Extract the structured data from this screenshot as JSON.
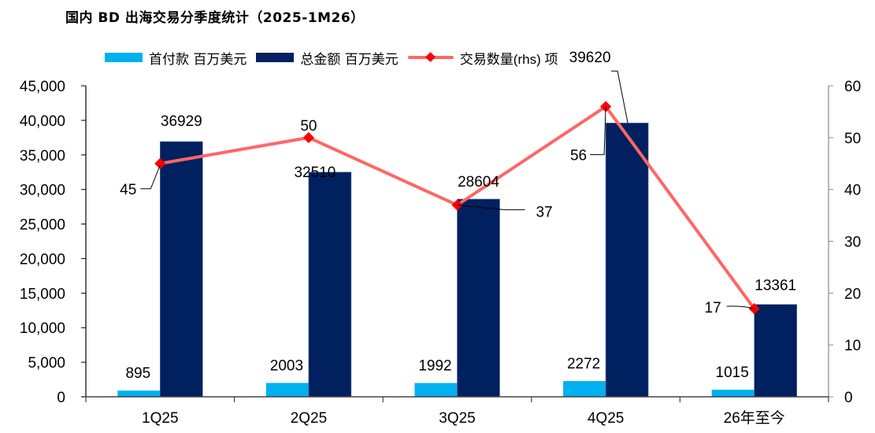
{
  "chart_data": {
    "type": "bar",
    "title": "国内 BD 出海交易分季度统计（2025-1M26）",
    "categories": [
      "1Q25",
      "2Q25",
      "3Q25",
      "4Q25",
      "26年至今"
    ],
    "series": [
      {
        "name": "首付款 百万美元",
        "type": "bar",
        "axis": "left",
        "color": "#00B0F0",
        "values": [
          895,
          2003,
          1992,
          2272,
          1015
        ]
      },
      {
        "name": "总金额 百万美元",
        "type": "bar",
        "axis": "left",
        "color": "#002060",
        "values": [
          36929,
          32510,
          28604,
          39620,
          13361
        ]
      },
      {
        "name": "交易数量(rhs) 项",
        "type": "line",
        "axis": "right",
        "color": "#FF6666",
        "marker_color": "#FF0000",
        "values": [
          45,
          50,
          37,
          56,
          17
        ]
      }
    ],
    "left_axis": {
      "ylim": [
        0,
        45000
      ],
      "ticks": [
        0,
        5000,
        10000,
        15000,
        20000,
        25000,
        30000,
        35000,
        40000,
        45000
      ],
      "tick_labels": [
        "0",
        "5,000",
        "10,000",
        "15,000",
        "20,000",
        "25,000",
        "30,000",
        "35,000",
        "40,000",
        "45,000"
      ]
    },
    "right_axis": {
      "ylim": [
        0,
        60
      ],
      "ticks": [
        0,
        10,
        20,
        30,
        40,
        50,
        60
      ],
      "tick_labels": [
        "0",
        "10",
        "20",
        "30",
        "40",
        "50",
        "60"
      ]
    },
    "xlabel": "",
    "ylabel": "",
    "grid": false,
    "legend_position": "top"
  },
  "legend": {
    "items": [
      {
        "label": "首付款 百万美元",
        "color": "#00B0F0"
      },
      {
        "label": "总金额 百万美元",
        "color": "#002060"
      },
      {
        "label": "交易数量(rhs) 项",
        "color": "#FF6666"
      }
    ]
  }
}
